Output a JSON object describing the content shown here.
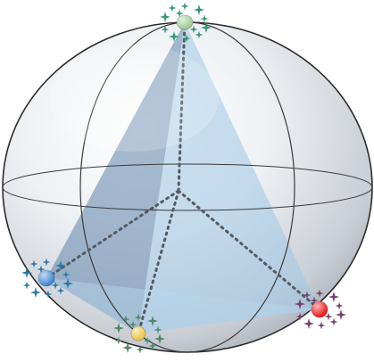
{
  "figure": {
    "sphere": {
      "fill_light": "#f4f6f8",
      "fill_dark": "#aeb5bd",
      "outline": "#2b2b2b"
    },
    "lines": {
      "wire": "#333333",
      "dotted": "#555a60"
    },
    "faces": {
      "left": "#7f9dbd",
      "right": "#a9cbe6",
      "front": "#c4dff2"
    },
    "vertices": [
      {
        "id": "top",
        "color": "#9bc98f",
        "sparkle_color": "#2e9a72"
      },
      {
        "id": "left",
        "color": "#3a82d0",
        "sparkle_color": "#2e78a8"
      },
      {
        "id": "bottom",
        "color": "#e7c43a",
        "sparkle_color": "#4f8a6b"
      },
      {
        "id": "right",
        "color": "#ee1111",
        "sparkle_color": "#7a3f6e"
      }
    ]
  }
}
